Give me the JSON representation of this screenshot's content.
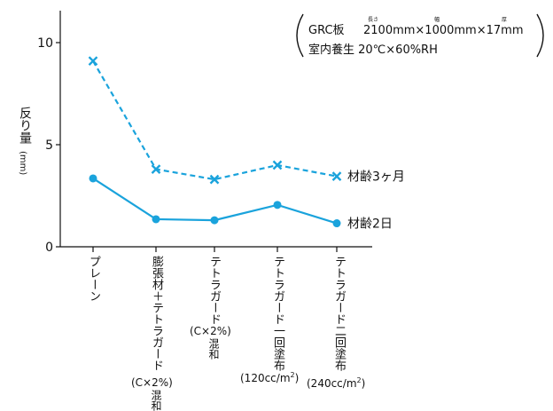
{
  "chart_data": {
    "type": "line",
    "categories": [
      "プレーン",
      "膨張材＋テトラガード",
      "テトラガード",
      "テトラガード一回塗布",
      "テトラガード二回塗布"
    ],
    "category_notes": [
      "",
      "(C×2%)混和",
      "(C×2%)混和",
      "(120cc/m2)",
      "(240cc/m2)"
    ],
    "series": [
      {
        "name": "材齢3ヶ月",
        "values": [
          9.1,
          3.8,
          3.3,
          4.0,
          3.45
        ],
        "color": "#1aa3dc",
        "line": "dashed",
        "marker": "x"
      },
      {
        "name": "材齢2日",
        "values": [
          3.35,
          1.35,
          1.3,
          2.05,
          1.15
        ],
        "color": "#1aa3dc",
        "line": "solid",
        "marker": "circle"
      }
    ],
    "ylabel": "反り量",
    "yunit": "mm",
    "ylim": [
      0,
      12
    ],
    "yticks": [
      0,
      5,
      10
    ],
    "grid": false,
    "legend": "inline-right",
    "annotation": {
      "line1_prefix": "GRC板",
      "line1_value": "2100mm×1000mm×17mm",
      "ruby_length": "長さ",
      "ruby_width": "幅",
      "ruby_thickness": "厚",
      "line2": "室内養生 20℃×60%RH"
    }
  }
}
